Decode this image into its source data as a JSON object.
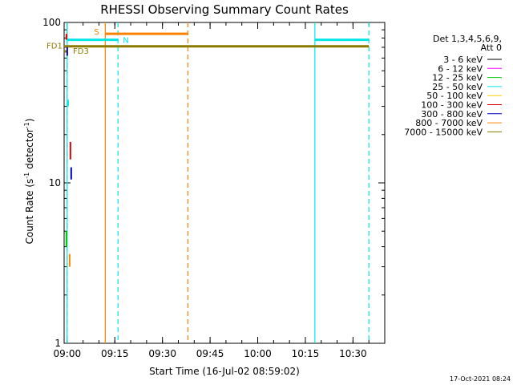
{
  "chart_data": {
    "type": "line",
    "title": "RHESSI Observing Summary Count Rates",
    "xlabel": "Start Time (16-Jul-02 08:59:02)",
    "ylabel_main": "Count Rate (s",
    "ylabel_sup1": "-1",
    "ylabel_mid": " detector",
    "ylabel_sup2": "-1",
    "ylabel_end": ")",
    "yscale": "log",
    "ylim": [
      1,
      100
    ],
    "xlim": [
      "08:59:02",
      "10:40:00"
    ],
    "x_ticks": [
      "09:00",
      "09:15",
      "09:30",
      "09:45",
      "10:00",
      "10:15",
      "10:30"
    ],
    "y_ticks": [
      {
        "value": 1,
        "label": "1"
      },
      {
        "value": 10,
        "label": "10"
      },
      {
        "value": 100,
        "label": "100"
      }
    ],
    "legend": {
      "header1": "Det 1,3,4,5,6,9,",
      "header2": "Att 0",
      "placement": "right",
      "items": [
        {
          "label": "3 - 6 keV",
          "color": "#000000"
        },
        {
          "label": "6 - 12 keV",
          "color": "#ff00ff"
        },
        {
          "label": "12 - 25 keV",
          "color": "#00cc00"
        },
        {
          "label": "25 - 50 keV",
          "color": "#00e5e5"
        },
        {
          "label": "50 - 100 keV",
          "color": "#ffd000"
        },
        {
          "label": "100 - 300 keV",
          "color": "#e00000"
        },
        {
          "label": "300 - 800 keV",
          "color": "#0000cc"
        },
        {
          "label": "800 - 7000 keV",
          "color": "#ff8000"
        },
        {
          "label": "7000 - 15000 keV",
          "color": "#8b7a00"
        }
      ]
    },
    "flags": [
      {
        "label": "S",
        "color": "#ff8000",
        "start": "09:12",
        "end": "09:38",
        "value": 85
      },
      {
        "label": "N",
        "color": "#00e5e5",
        "start": "09:00",
        "end": "09:16",
        "value": 78
      },
      {
        "label": "N",
        "color": "#00e5e5",
        "start": "10:18",
        "end": "10:35",
        "value": 78
      },
      {
        "label": "FD1",
        "color": "#8b7a00",
        "start": "08:59",
        "end": "10:35",
        "value": 71
      },
      {
        "label": "FD3",
        "color": "#8b7a00",
        "start": "08:59",
        "end": "09:00",
        "value": 66
      }
    ],
    "event_lines": [
      {
        "time": "09:00",
        "color": "#00e5e5",
        "style": "solid"
      },
      {
        "time": "09:00",
        "color": "#00e5e5",
        "style": "dashed"
      },
      {
        "time": "09:12",
        "color": "#ff8000",
        "style": "solid"
      },
      {
        "time": "09:16",
        "color": "#00e5e5",
        "style": "dashed"
      },
      {
        "time": "09:38",
        "color": "#ff8000",
        "style": "dashed"
      },
      {
        "time": "10:18",
        "color": "#00e5e5",
        "style": "solid"
      },
      {
        "time": "10:35",
        "color": "#00e5e5",
        "style": "dashed"
      }
    ],
    "spikes": [
      {
        "time": "08:59",
        "color": "#e00000",
        "low": 78,
        "high": 85
      },
      {
        "time": "08:59",
        "color": "#0000cc",
        "low": 62,
        "high": 70
      },
      {
        "time": "08:59",
        "color": "#00e5e5",
        "low": 30,
        "high": 33
      },
      {
        "time": "08:59",
        "color": "#00cc00",
        "low": 4,
        "high": 5
      },
      {
        "time": "09:00",
        "color": "#e00000",
        "low": 14,
        "high": 18
      },
      {
        "time": "09:00",
        "color": "#0000cc",
        "low": 10.5,
        "high": 12.5
      },
      {
        "time": "09:00",
        "color": "#ff8000",
        "low": 3,
        "high": 3.6
      }
    ],
    "timestamp": "17-Oct-2021 08:24"
  }
}
